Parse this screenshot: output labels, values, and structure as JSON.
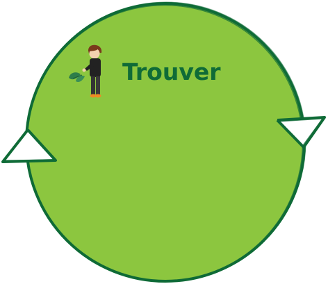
{
  "diagram": {
    "label": "Trouver",
    "figure_icon": "person-holding-leaves-icon",
    "colors": {
      "circle_fill": "#8cc63f",
      "outline": "#0f6b37",
      "label": "#0f6b37",
      "arrow_fill": "#ffffff"
    }
  }
}
